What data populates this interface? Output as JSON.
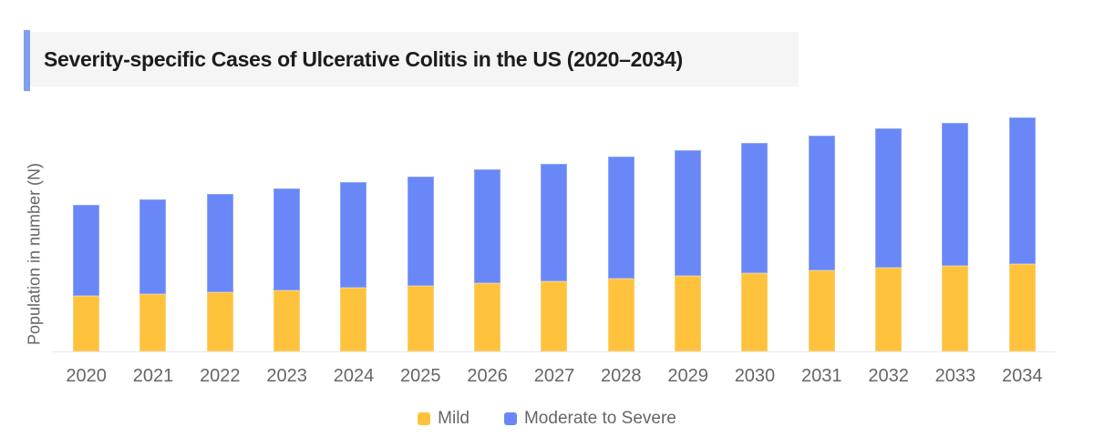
{
  "title": {
    "text": "Severity-specific Cases of Ulcerative Colitis in the US (2020–2034)"
  },
  "colors": {
    "accent_bar": "#7C9FF0",
    "title_background": "#F5F5F5",
    "title_text": "#1C1C1C",
    "axis_line": "#E8E8E8",
    "label_gray": "#666666",
    "mild": "#FEC23C",
    "moderate_to_severe": "#6987F6"
  },
  "chart_data": {
    "type": "bar",
    "stacked": true,
    "title": "Severity-specific Cases of Ulcerative Colitis in the US (2020–2034)",
    "xlabel": "",
    "ylabel": "Population in number (N)",
    "categories": [
      "2020",
      "2021",
      "2022",
      "2023",
      "2024",
      "2025",
      "2026",
      "2027",
      "2028",
      "2029",
      "2030",
      "2031",
      "2032",
      "2033",
      "2034"
    ],
    "series": [
      {
        "name": "Mild",
        "color": "#FEC23C",
        "values": [
          61,
          63,
          65,
          67,
          70,
          72,
          75,
          77,
          80,
          83,
          86,
          89,
          92,
          94,
          96
        ]
      },
      {
        "name": "Moderate to Severe",
        "color": "#6987F6",
        "values": [
          100,
          104,
          108,
          112,
          116,
          120,
          125,
          129,
          134,
          138,
          143,
          148,
          153,
          157,
          161
        ]
      }
    ],
    "totals": [
      161,
      167,
      173,
      179,
      186,
      192,
      200,
      206,
      214,
      221,
      229,
      237,
      245,
      251,
      257
    ],
    "ylim": [
      0,
      276
    ],
    "grid": false,
    "y_tick_labels_visible": false,
    "legend_position": "bottom",
    "note": "Y axis shows no numeric tick labels; values are relative units estimated from bar heights (1 unit = 1 px)."
  },
  "legend": {
    "items": [
      {
        "label": "Mild"
      },
      {
        "label": "Moderate to Severe"
      }
    ]
  }
}
